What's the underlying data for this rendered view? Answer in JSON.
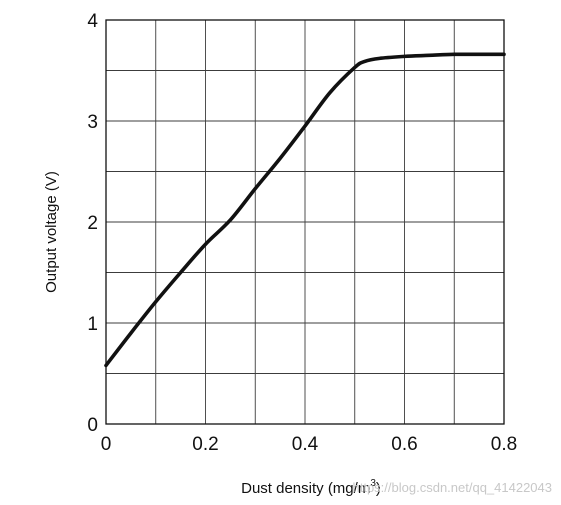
{
  "chart_data": {
    "type": "line",
    "title": "",
    "xlabel": "Dust density (mg/m",
    "xlabel_superscript": "3",
    "xlabel_suffix": ")",
    "ylabel": "Output voltage (V)",
    "xlim": [
      0,
      0.8
    ],
    "ylim": [
      0,
      4
    ],
    "x_ticks": [
      0,
      0.2,
      0.4,
      0.6,
      0.8
    ],
    "x_tick_labels": [
      "0",
      "0.2",
      "0.4",
      "0.6",
      "0.8"
    ],
    "y_ticks": [
      0,
      1,
      2,
      3,
      4
    ],
    "y_tick_labels": [
      "0",
      "1",
      "2",
      "3",
      "4"
    ],
    "grid": true,
    "grid_x_step": 0.1,
    "grid_y_step": 0.5,
    "legend": "none",
    "series": [
      {
        "x": [
          0,
          0.05,
          0.1,
          0.15,
          0.2,
          0.25,
          0.3,
          0.35,
          0.4,
          0.45,
          0.5,
          0.52,
          0.55,
          0.6,
          0.65,
          0.7,
          0.75,
          0.8
        ],
        "y": [
          0.58,
          0.9,
          1.21,
          1.5,
          1.78,
          2.02,
          2.33,
          2.63,
          2.95,
          3.28,
          3.53,
          3.59,
          3.62,
          3.64,
          3.65,
          3.66,
          3.66,
          3.66
        ],
        "color": "#111111"
      }
    ]
  },
  "watermark": "https://blog.csdn.net/qq_41422043"
}
